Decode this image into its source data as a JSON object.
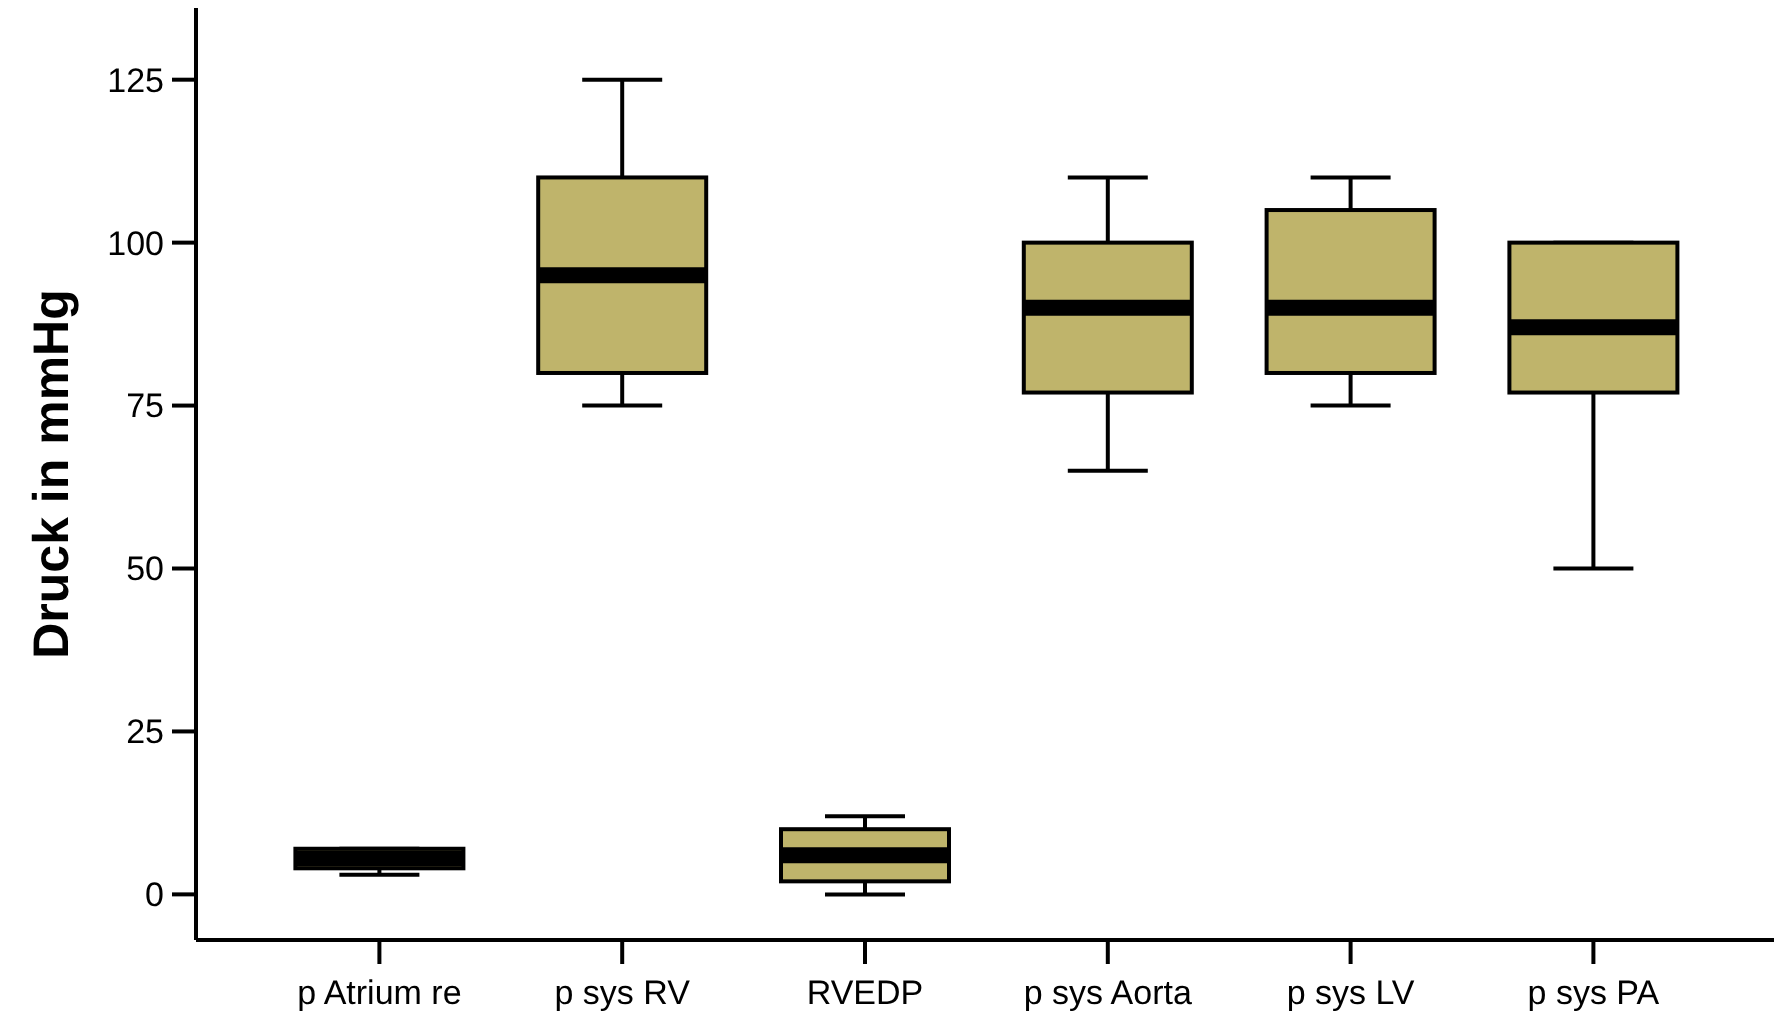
{
  "chart_data": {
    "type": "box",
    "ylabel": "Druck in mmHg",
    "categories": [
      "p Atrium re",
      "p sys RV",
      "RVEDP",
      "p sys Aorta",
      "p sys LV",
      "p sys PA"
    ],
    "color": "#bfb46b",
    "ylim": [
      -7,
      136
    ],
    "yticks": [
      0,
      25,
      50,
      75,
      100,
      125
    ],
    "grid": false,
    "boxes": [
      {
        "low": 3,
        "q1": 4,
        "median": 5.5,
        "q3": 7,
        "high": 7
      },
      {
        "low": 75,
        "q1": 80,
        "median": 95,
        "q3": 110,
        "high": 125
      },
      {
        "low": 0,
        "q1": 2,
        "median": 6,
        "q3": 10,
        "high": 12
      },
      {
        "low": 65,
        "q1": 77,
        "median": 90,
        "q3": 100,
        "high": 110
      },
      {
        "low": 75,
        "q1": 80,
        "median": 90,
        "q3": 105,
        "high": 110
      },
      {
        "low": 50,
        "q1": 77,
        "median": 87,
        "q3": 100,
        "high": 100
      }
    ]
  }
}
